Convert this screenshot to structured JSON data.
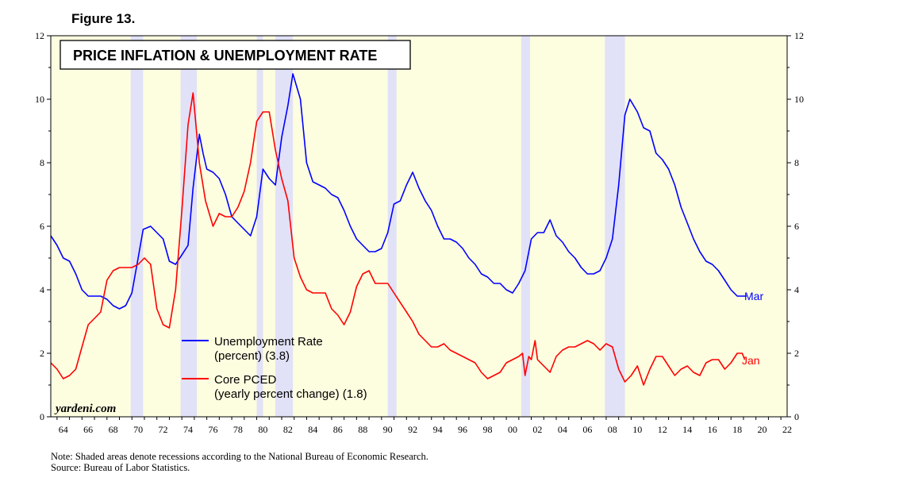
{
  "figure_label": "Figure 13.",
  "notes": {
    "line1": "Note: Shaded areas denote recessions according to the National Bureau of Economic Research.",
    "line2": "Source: Bureau of Labor Statistics."
  },
  "colors": {
    "plot_bg": "#fdfde0",
    "recession": "#e1e1f7",
    "unemployment": "#0000ff",
    "core_pced": "#ff0000"
  },
  "chart_data": {
    "type": "line",
    "title": "PRICE INFLATION & UNEMPLOYMENT RATE",
    "watermark": "yardeni.com",
    "xlim": [
      1963.5,
      2022.5
    ],
    "ylim": [
      0,
      12
    ],
    "x_ticks": [
      "64",
      "66",
      "68",
      "70",
      "72",
      "74",
      "76",
      "78",
      "80",
      "82",
      "84",
      "86",
      "88",
      "90",
      "92",
      "94",
      "96",
      "98",
      "00",
      "02",
      "04",
      "06",
      "08",
      "10",
      "12",
      "14",
      "16",
      "18",
      "20",
      "22"
    ],
    "y_ticks": [
      "0",
      "2",
      "4",
      "6",
      "8",
      "10",
      "12"
    ],
    "recessions": [
      [
        1969.9,
        1970.9
      ],
      [
        1973.9,
        1975.2
      ],
      [
        1980.0,
        1980.5
      ],
      [
        1981.5,
        1982.9
      ],
      [
        1990.5,
        1991.2
      ],
      [
        2001.2,
        2001.9
      ],
      [
        2007.9,
        2009.5
      ]
    ],
    "series": [
      {
        "name": "Unemployment Rate (percent) (3.8)",
        "legend_line1": "Unemployment Rate",
        "legend_line2": "(percent) (3.8)",
        "end_label": "Mar",
        "color": "#0000ff",
        "points": [
          [
            1963.5,
            5.7
          ],
          [
            1964.0,
            5.4
          ],
          [
            1964.5,
            5.0
          ],
          [
            1965.0,
            4.9
          ],
          [
            1965.5,
            4.5
          ],
          [
            1966.0,
            4.0
          ],
          [
            1966.5,
            3.8
          ],
          [
            1967.0,
            3.8
          ],
          [
            1967.5,
            3.8
          ],
          [
            1968.0,
            3.7
          ],
          [
            1968.5,
            3.5
          ],
          [
            1969.0,
            3.4
          ],
          [
            1969.5,
            3.5
          ],
          [
            1970.0,
            3.9
          ],
          [
            1970.5,
            5.0
          ],
          [
            1970.9,
            5.9
          ],
          [
            1971.5,
            6.0
          ],
          [
            1972.0,
            5.8
          ],
          [
            1972.5,
            5.6
          ],
          [
            1973.0,
            4.9
          ],
          [
            1973.5,
            4.8
          ],
          [
            1974.0,
            5.1
          ],
          [
            1974.5,
            5.4
          ],
          [
            1974.9,
            7.2
          ],
          [
            1975.4,
            8.9
          ],
          [
            1975.7,
            8.3
          ],
          [
            1976.0,
            7.8
          ],
          [
            1976.5,
            7.7
          ],
          [
            1977.0,
            7.5
          ],
          [
            1977.5,
            7.0
          ],
          [
            1978.0,
            6.3
          ],
          [
            1978.5,
            6.1
          ],
          [
            1979.0,
            5.9
          ],
          [
            1979.5,
            5.7
          ],
          [
            1980.0,
            6.3
          ],
          [
            1980.5,
            7.8
          ],
          [
            1981.0,
            7.5
          ],
          [
            1981.5,
            7.3
          ],
          [
            1982.0,
            8.8
          ],
          [
            1982.5,
            9.8
          ],
          [
            1982.9,
            10.8
          ],
          [
            1983.5,
            10.0
          ],
          [
            1984.0,
            8.0
          ],
          [
            1984.5,
            7.4
          ],
          [
            1985.0,
            7.3
          ],
          [
            1985.5,
            7.2
          ],
          [
            1986.0,
            7.0
          ],
          [
            1986.5,
            6.9
          ],
          [
            1987.0,
            6.5
          ],
          [
            1987.5,
            6.0
          ],
          [
            1988.0,
            5.6
          ],
          [
            1988.5,
            5.4
          ],
          [
            1989.0,
            5.2
          ],
          [
            1989.5,
            5.2
          ],
          [
            1990.0,
            5.3
          ],
          [
            1990.5,
            5.8
          ],
          [
            1991.0,
            6.7
          ],
          [
            1991.5,
            6.8
          ],
          [
            1992.0,
            7.3
          ],
          [
            1992.5,
            7.7
          ],
          [
            1993.0,
            7.2
          ],
          [
            1993.5,
            6.8
          ],
          [
            1994.0,
            6.5
          ],
          [
            1994.5,
            6.0
          ],
          [
            1995.0,
            5.6
          ],
          [
            1995.5,
            5.6
          ],
          [
            1996.0,
            5.5
          ],
          [
            1996.5,
            5.3
          ],
          [
            1997.0,
            5.0
          ],
          [
            1997.5,
            4.8
          ],
          [
            1998.0,
            4.5
          ],
          [
            1998.5,
            4.4
          ],
          [
            1999.0,
            4.2
          ],
          [
            1999.5,
            4.2
          ],
          [
            2000.0,
            4.0
          ],
          [
            2000.5,
            3.9
          ],
          [
            2001.0,
            4.2
          ],
          [
            2001.5,
            4.6
          ],
          [
            2002.0,
            5.6
          ],
          [
            2002.5,
            5.8
          ],
          [
            2003.0,
            5.8
          ],
          [
            2003.5,
            6.2
          ],
          [
            2004.0,
            5.7
          ],
          [
            2004.5,
            5.5
          ],
          [
            2005.0,
            5.2
          ],
          [
            2005.5,
            5.0
          ],
          [
            2006.0,
            4.7
          ],
          [
            2006.5,
            4.5
          ],
          [
            2007.0,
            4.5
          ],
          [
            2007.5,
            4.6
          ],
          [
            2008.0,
            5.0
          ],
          [
            2008.5,
            5.6
          ],
          [
            2009.0,
            7.3
          ],
          [
            2009.5,
            9.5
          ],
          [
            2009.9,
            10.0
          ],
          [
            2010.5,
            9.6
          ],
          [
            2011.0,
            9.1
          ],
          [
            2011.5,
            9.0
          ],
          [
            2012.0,
            8.3
          ],
          [
            2012.5,
            8.1
          ],
          [
            2013.0,
            7.8
          ],
          [
            2013.5,
            7.3
          ],
          [
            2014.0,
            6.6
          ],
          [
            2014.5,
            6.1
          ],
          [
            2015.0,
            5.6
          ],
          [
            2015.5,
            5.2
          ],
          [
            2016.0,
            4.9
          ],
          [
            2016.5,
            4.8
          ],
          [
            2017.0,
            4.6
          ],
          [
            2017.5,
            4.3
          ],
          [
            2018.0,
            4.0
          ],
          [
            2018.5,
            3.8
          ],
          [
            2019.0,
            3.8
          ],
          [
            2019.25,
            3.8
          ]
        ]
      },
      {
        "name": "Core PCED (yearly percent change) (1.8)",
        "legend_line1": "Core PCED",
        "legend_line2": "(yearly percent change) (1.8)",
        "end_label": "Jan",
        "color": "#ff0000",
        "points": [
          [
            1963.5,
            1.7
          ],
          [
            1964.0,
            1.5
          ],
          [
            1964.5,
            1.2
          ],
          [
            1965.0,
            1.3
          ],
          [
            1965.5,
            1.5
          ],
          [
            1966.0,
            2.2
          ],
          [
            1966.5,
            2.9
          ],
          [
            1967.0,
            3.1
          ],
          [
            1967.5,
            3.3
          ],
          [
            1968.0,
            4.3
          ],
          [
            1968.5,
            4.6
          ],
          [
            1969.0,
            4.7
          ],
          [
            1969.5,
            4.7
          ],
          [
            1970.0,
            4.7
          ],
          [
            1970.5,
            4.8
          ],
          [
            1971.0,
            5.0
          ],
          [
            1971.5,
            4.8
          ],
          [
            1972.0,
            3.4
          ],
          [
            1972.5,
            2.9
          ],
          [
            1973.0,
            2.8
          ],
          [
            1973.5,
            4.0
          ],
          [
            1974.0,
            6.5
          ],
          [
            1974.5,
            9.2
          ],
          [
            1974.9,
            10.2
          ],
          [
            1975.4,
            8.0
          ],
          [
            1975.9,
            6.8
          ],
          [
            1976.5,
            6.0
          ],
          [
            1977.0,
            6.4
          ],
          [
            1977.5,
            6.3
          ],
          [
            1978.0,
            6.3
          ],
          [
            1978.5,
            6.6
          ],
          [
            1979.0,
            7.1
          ],
          [
            1979.5,
            8.0
          ],
          [
            1980.0,
            9.3
          ],
          [
            1980.5,
            9.6
          ],
          [
            1981.0,
            9.6
          ],
          [
            1981.5,
            8.4
          ],
          [
            1982.0,
            7.5
          ],
          [
            1982.5,
            6.8
          ],
          [
            1983.0,
            5.0
          ],
          [
            1983.5,
            4.4
          ],
          [
            1984.0,
            4.0
          ],
          [
            1984.5,
            3.9
          ],
          [
            1985.0,
            3.9
          ],
          [
            1985.5,
            3.9
          ],
          [
            1986.0,
            3.4
          ],
          [
            1986.5,
            3.2
          ],
          [
            1987.0,
            2.9
          ],
          [
            1987.5,
            3.3
          ],
          [
            1988.0,
            4.1
          ],
          [
            1988.5,
            4.5
          ],
          [
            1989.0,
            4.6
          ],
          [
            1989.5,
            4.2
          ],
          [
            1990.0,
            4.2
          ],
          [
            1990.5,
            4.2
          ],
          [
            1991.0,
            3.9
          ],
          [
            1991.5,
            3.6
          ],
          [
            1992.0,
            3.3
          ],
          [
            1992.5,
            3.0
          ],
          [
            1993.0,
            2.6
          ],
          [
            1993.5,
            2.4
          ],
          [
            1994.0,
            2.2
          ],
          [
            1994.5,
            2.2
          ],
          [
            1995.0,
            2.3
          ],
          [
            1995.5,
            2.1
          ],
          [
            1996.0,
            2.0
          ],
          [
            1996.5,
            1.9
          ],
          [
            1997.0,
            1.8
          ],
          [
            1997.5,
            1.7
          ],
          [
            1998.0,
            1.4
          ],
          [
            1998.5,
            1.2
          ],
          [
            1999.0,
            1.3
          ],
          [
            1999.5,
            1.4
          ],
          [
            2000.0,
            1.7
          ],
          [
            2000.5,
            1.8
          ],
          [
            2001.0,
            1.9
          ],
          [
            2001.3,
            2.0
          ],
          [
            2001.5,
            1.3
          ],
          [
            2001.8,
            1.9
          ],
          [
            2002.0,
            1.8
          ],
          [
            2002.3,
            2.4
          ],
          [
            2002.5,
            1.8
          ],
          [
            2003.0,
            1.6
          ],
          [
            2003.5,
            1.4
          ],
          [
            2004.0,
            1.9
          ],
          [
            2004.5,
            2.1
          ],
          [
            2005.0,
            2.2
          ],
          [
            2005.5,
            2.2
          ],
          [
            2006.0,
            2.3
          ],
          [
            2006.5,
            2.4
          ],
          [
            2007.0,
            2.3
          ],
          [
            2007.5,
            2.1
          ],
          [
            2008.0,
            2.3
          ],
          [
            2008.5,
            2.2
          ],
          [
            2009.0,
            1.5
          ],
          [
            2009.5,
            1.1
          ],
          [
            2010.0,
            1.3
          ],
          [
            2010.5,
            1.6
          ],
          [
            2011.0,
            1.0
          ],
          [
            2011.5,
            1.5
          ],
          [
            2012.0,
            1.9
          ],
          [
            2012.5,
            1.9
          ],
          [
            2013.0,
            1.6
          ],
          [
            2013.5,
            1.3
          ],
          [
            2014.0,
            1.5
          ],
          [
            2014.5,
            1.6
          ],
          [
            2015.0,
            1.4
          ],
          [
            2015.5,
            1.3
          ],
          [
            2016.0,
            1.7
          ],
          [
            2016.5,
            1.8
          ],
          [
            2017.0,
            1.8
          ],
          [
            2017.5,
            1.5
          ],
          [
            2018.0,
            1.7
          ],
          [
            2018.5,
            2.0
          ],
          [
            2018.9,
            2.0
          ],
          [
            2019.1,
            1.8
          ]
        ]
      }
    ]
  }
}
